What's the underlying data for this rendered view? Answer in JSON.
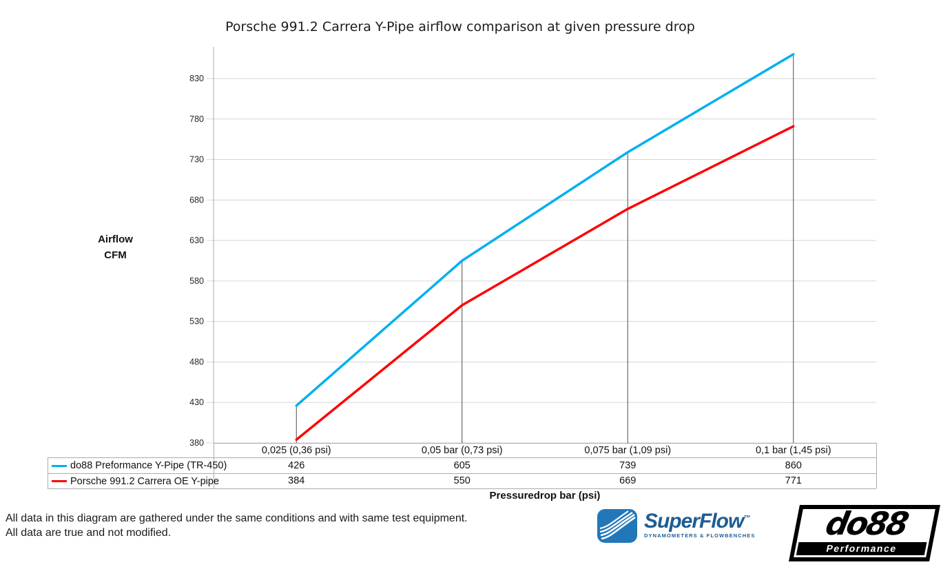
{
  "title": "Porsche 991.2 Carrera Y-Pipe airflow comparison at given pressure drop",
  "y_axis_title": {
    "line1": "Airflow",
    "line2": "CFM"
  },
  "x_axis_title": "Pressuredrop bar (psi)",
  "chart_data": {
    "type": "line",
    "title": "Porsche 991.2 Carrera Y-Pipe airflow comparison at given pressure drop",
    "xlabel": "Pressuredrop bar (psi)",
    "ylabel": "Airflow CFM",
    "categories": [
      "0,025 (0,36 psi)",
      "0,05 bar (0,73 psi)",
      "0,075 bar (1,09 psi)",
      "0,1 bar (1,45 psi)"
    ],
    "series": [
      {
        "name": "do88 Preformance Y-Pipe (TR-450)",
        "color": "#00b0f0",
        "values": [
          426,
          605,
          739,
          860
        ]
      },
      {
        "name": "Porsche 991.2 Carrera OE Y-pipe",
        "color": "#fe0000",
        "values": [
          384,
          550,
          669,
          771
        ]
      }
    ],
    "yticks": [
      380,
      430,
      480,
      530,
      580,
      630,
      680,
      730,
      780,
      830
    ],
    "ylim": [
      380,
      870
    ],
    "grid": true,
    "legend_position": "data-table-left",
    "droplines": true
  },
  "footnote": {
    "line1": "All data in this diagram are gathered under the same conditions and with same test equipment.",
    "line2": "All data are true and not modified."
  },
  "logos": {
    "superflow": {
      "name": "SuperFlow",
      "trademark": "™",
      "tagline": "DYNAMOMETERS & FLOWBENCHES",
      "color": "#1d5c93"
    },
    "do88": {
      "name": "do88",
      "tagline": "Performance",
      "color": "#000000"
    }
  }
}
